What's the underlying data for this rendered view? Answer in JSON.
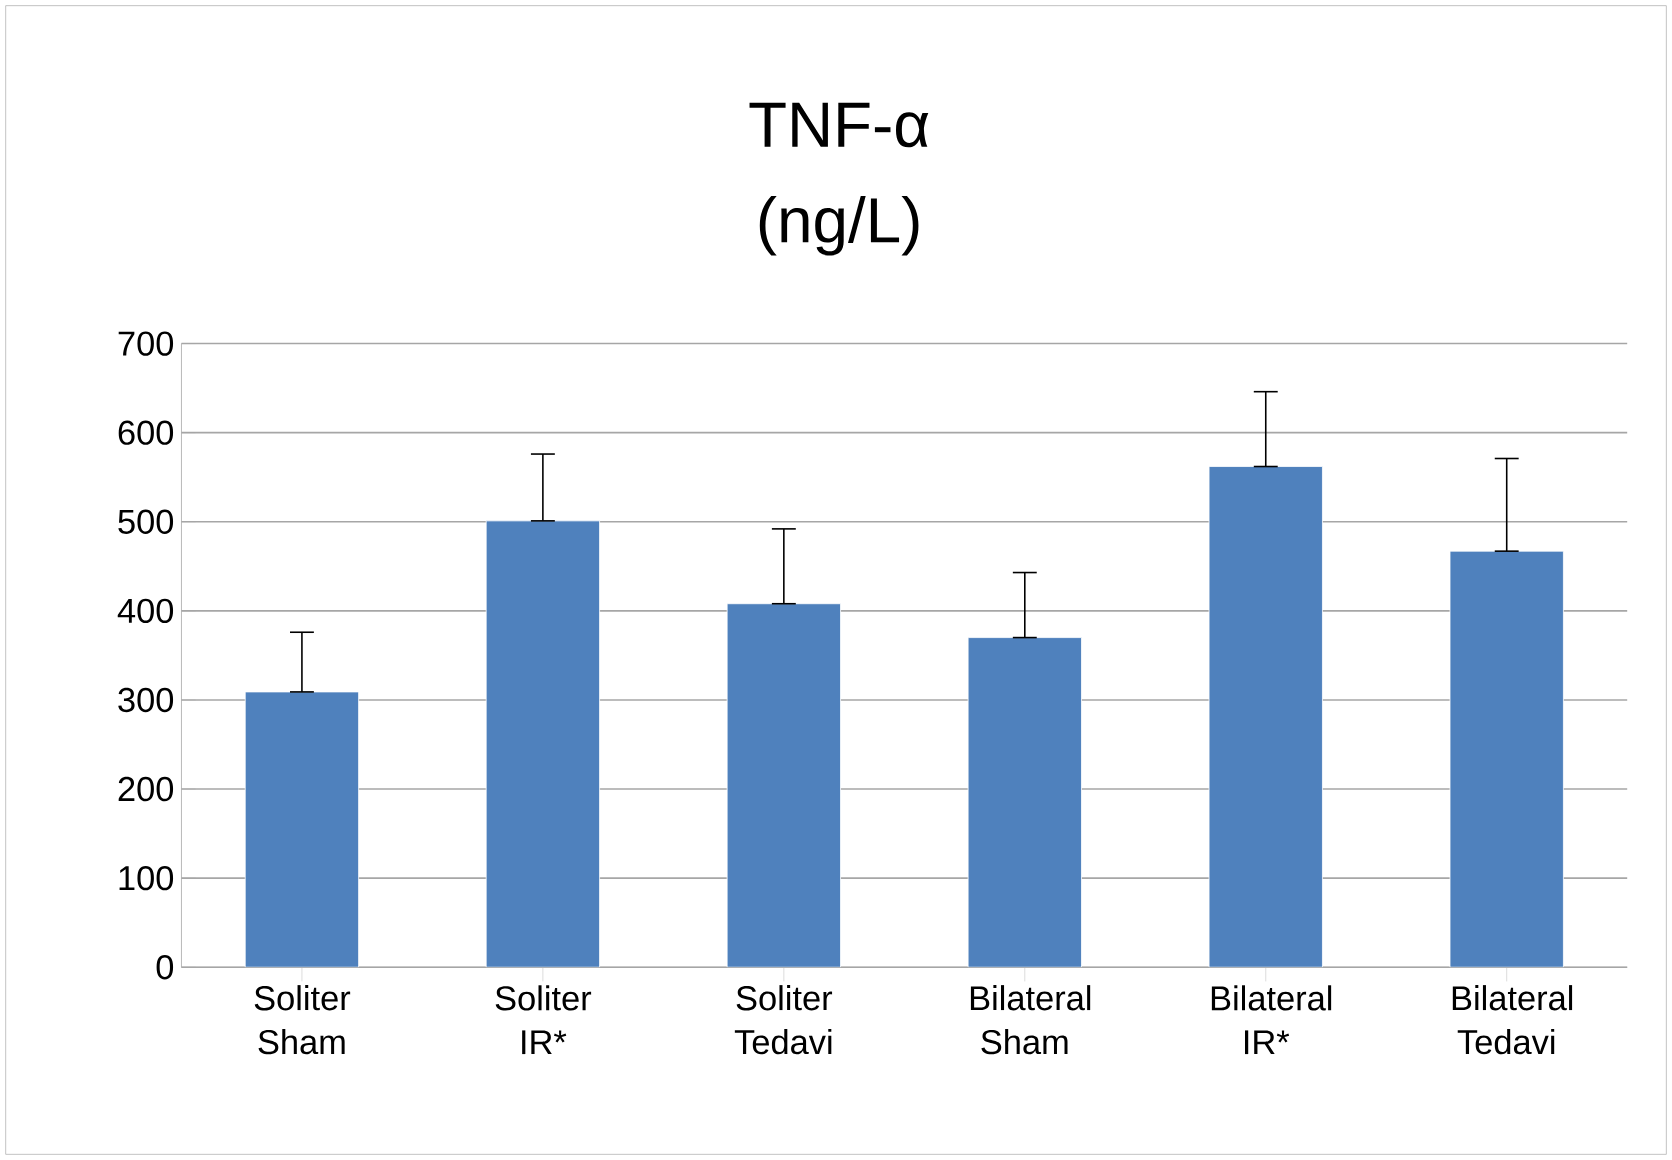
{
  "chart_data": {
    "type": "bar",
    "title": "TNF-α",
    "subtitle": "(ng/L)",
    "categories": [
      "Soliter Sham",
      "Soliter IR*",
      "Soliter Tedavi",
      "Bilateral Sham",
      "Bilateral IR*",
      "Bilateral Tedavi"
    ],
    "values": [
      309,
      501,
      408,
      370,
      562,
      467
    ],
    "errors": [
      [
        309,
        376
      ],
      [
        501,
        576
      ],
      [
        408,
        492
      ],
      [
        370,
        443
      ],
      [
        562,
        646
      ],
      [
        467,
        571
      ]
    ],
    "color": "#4f81bd",
    "ylim": [
      0,
      700
    ],
    "yticks": [
      0,
      100,
      200,
      300,
      400,
      500,
      600,
      700
    ],
    "grid": "y"
  }
}
